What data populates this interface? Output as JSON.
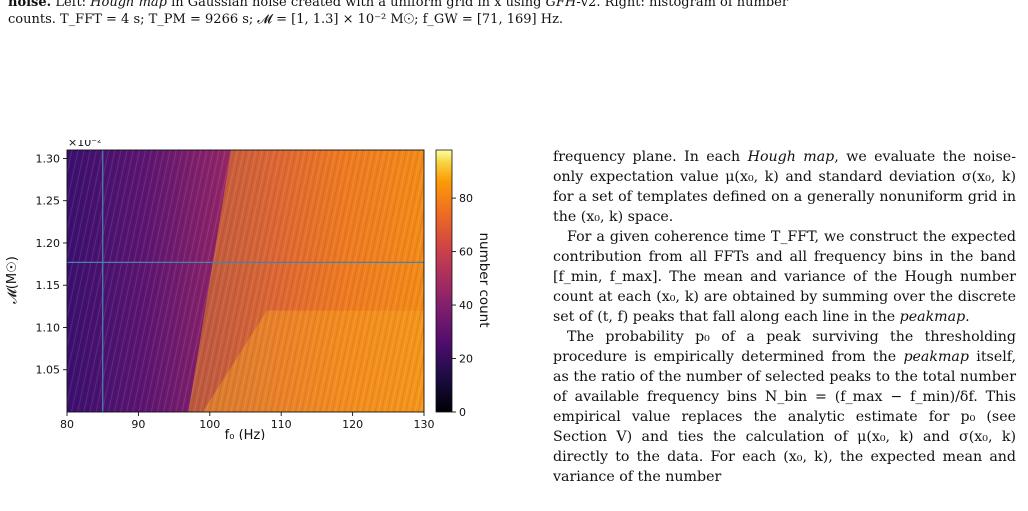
{
  "caption": {
    "lead": "noise.",
    "part1": " Left: ",
    "hough_map": "Hough map",
    "part2": " in Gaussian noise created with a uniform grid in x",
    "part2_sub": "0",
    "part3": " using ",
    "gfh": "GFH",
    "part4": "-v2. Right: histogram of number",
    "line2": "counts. T_FFT = 4 s; T_PM = 9266 s; 𝓜 = [1, 1.3] × 10⁻² M☉; f_GW = [71, 169] Hz."
  },
  "figure": {
    "exponent": "×10⁻²",
    "ylabel": "𝓜(M☉)",
    "xlabel": "f₀ (Hz)",
    "colorbar_label": "number count",
    "colorbar_ticks": [
      "0",
      "20",
      "40",
      "60",
      "80"
    ]
  },
  "chart_data": {
    "type": "heatmap",
    "title": "",
    "xlabel": "f₀ (Hz)",
    "ylabel": "𝓜(M☉)",
    "x_ticks": [
      "80",
      "90",
      "100",
      "110",
      "120",
      "130"
    ],
    "y_ticks": [
      "1.05",
      "1.10",
      "1.15",
      "1.20",
      "1.25",
      "1.30"
    ],
    "y_multiplier": "×10⁻²",
    "xlim": [
      80,
      130
    ],
    "ylim": [
      1.0,
      1.31
    ],
    "colorbar": {
      "label": "number count",
      "range": [
        0,
        98
      ],
      "ticks": [
        0,
        20,
        40,
        60,
        80
      ],
      "colormap": "inferno"
    },
    "crosshair": {
      "x": 85,
      "y": 1.177
    },
    "grid": false
  },
  "colors": {
    "crosshair": "#4a7fa8",
    "inferno_dark": "#000004",
    "inferno_light": "#fcffa4"
  },
  "body": {
    "p1_a": "frequency plane. In each ",
    "p1_hough": "Hough map",
    "p1_b": ", we evaluate the noise-only expectation value μ(x₀, k) and standard deviation σ(x₀, k) for a set of templates defined on a generally nonuniform grid in the (x₀, k) space.",
    "p2": "For a given coherence time T_FFT, we construct the expected contribution from all FFTs and all frequency bins in the band [f_min, f_max]. The mean and variance of the Hough number count at each (x₀, k) are obtained by summing over the discrete set of (t, f) peaks that fall along each line in the ",
    "p2_peakmap": "peakmap",
    "p2_end": ".",
    "p3_a": "The probability p₀ of a peak surviving the thresholding procedure is empirically determined from the ",
    "p3_peakmap": "peakmap",
    "p3_b": " itself, as the ratio of the number of selected peaks to the total number of available frequency bins N_bin = (f_max − f_min)/δf. This empirical value replaces the analytic estimate for p₀ (see Section V) and ties the calculation of μ(x₀, k) and σ(x₀, k) directly to the data. For each (x₀, k), the expected mean and variance of the number"
  }
}
